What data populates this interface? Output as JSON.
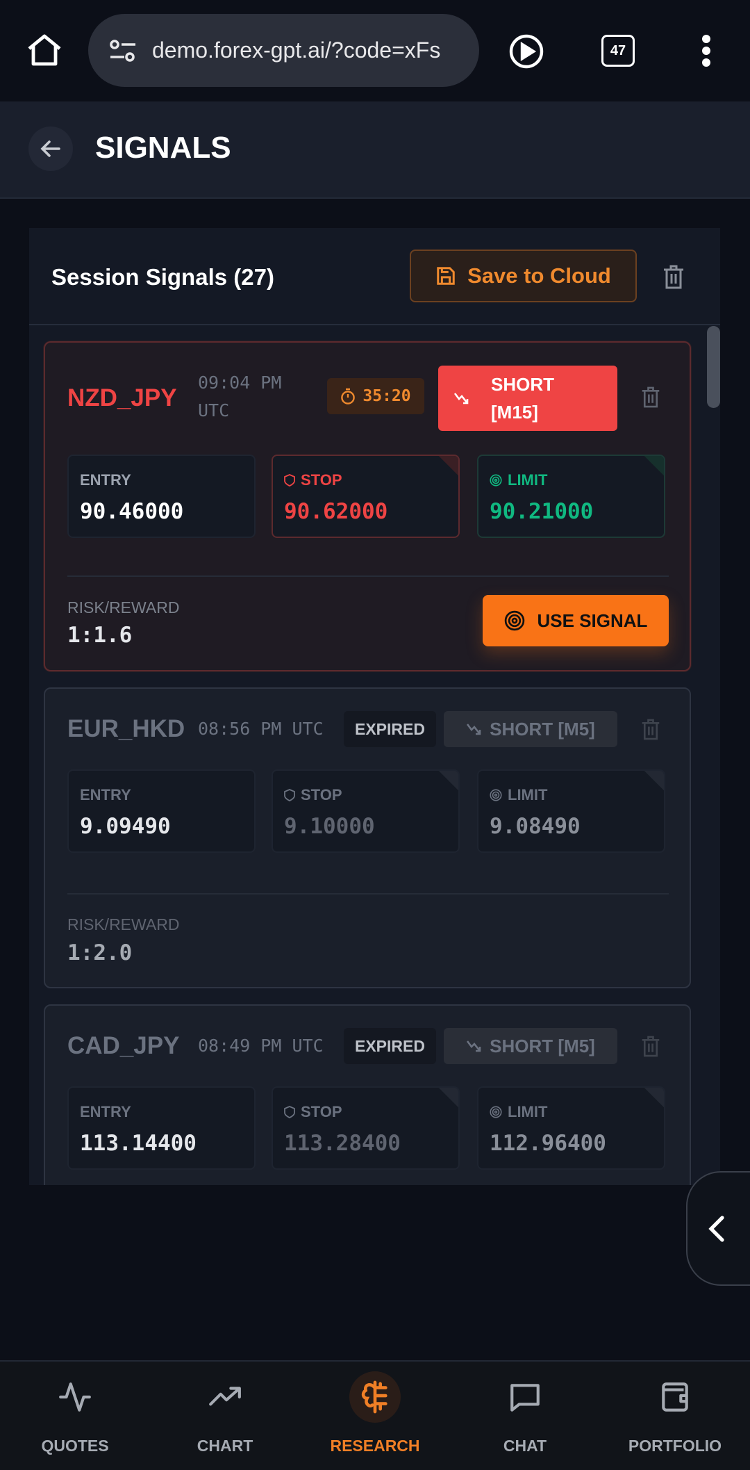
{
  "browser": {
    "url": "demo.forex-gpt.ai/?code=xFs",
    "tab_count": "47"
  },
  "header": {
    "title": "SIGNALS"
  },
  "panel": {
    "title": "Session Signals (27)",
    "save_label": "Save to Cloud"
  },
  "colors": {
    "accent": "#f97316",
    "short": "#ef4444",
    "limit": "#10b981"
  },
  "labels": {
    "entry": "ENTRY",
    "stop": "STOP",
    "limit": "LIMIT",
    "rr": "RISK/REWARD",
    "use": "USE SIGNAL"
  },
  "signals": [
    {
      "pair": "NZD_JPY",
      "time": "09:04 PM UTC",
      "timer": "35:20",
      "direction": "SHORT [M15]",
      "entry": "90.46000",
      "stop": "90.62000",
      "limit": "90.21000",
      "rr": "1:1.6",
      "status": "active"
    },
    {
      "pair": "EUR_HKD",
      "time": "08:56 PM UTC",
      "status": "EXPIRED",
      "direction": "SHORT [M5]",
      "entry": "9.09490",
      "stop": "9.10000",
      "limit": "9.08490",
      "rr": "1:2.0"
    },
    {
      "pair": "CAD_JPY",
      "time": "08:49 PM UTC",
      "status": "EXPIRED",
      "direction": "SHORT [M5]",
      "entry": "113.14400",
      "stop": "113.28400",
      "limit": "112.96400"
    }
  ],
  "nav": [
    {
      "label": "QUOTES"
    },
    {
      "label": "CHART"
    },
    {
      "label": "RESEARCH",
      "active": true
    },
    {
      "label": "CHAT"
    },
    {
      "label": "PORTFOLIO"
    }
  ]
}
